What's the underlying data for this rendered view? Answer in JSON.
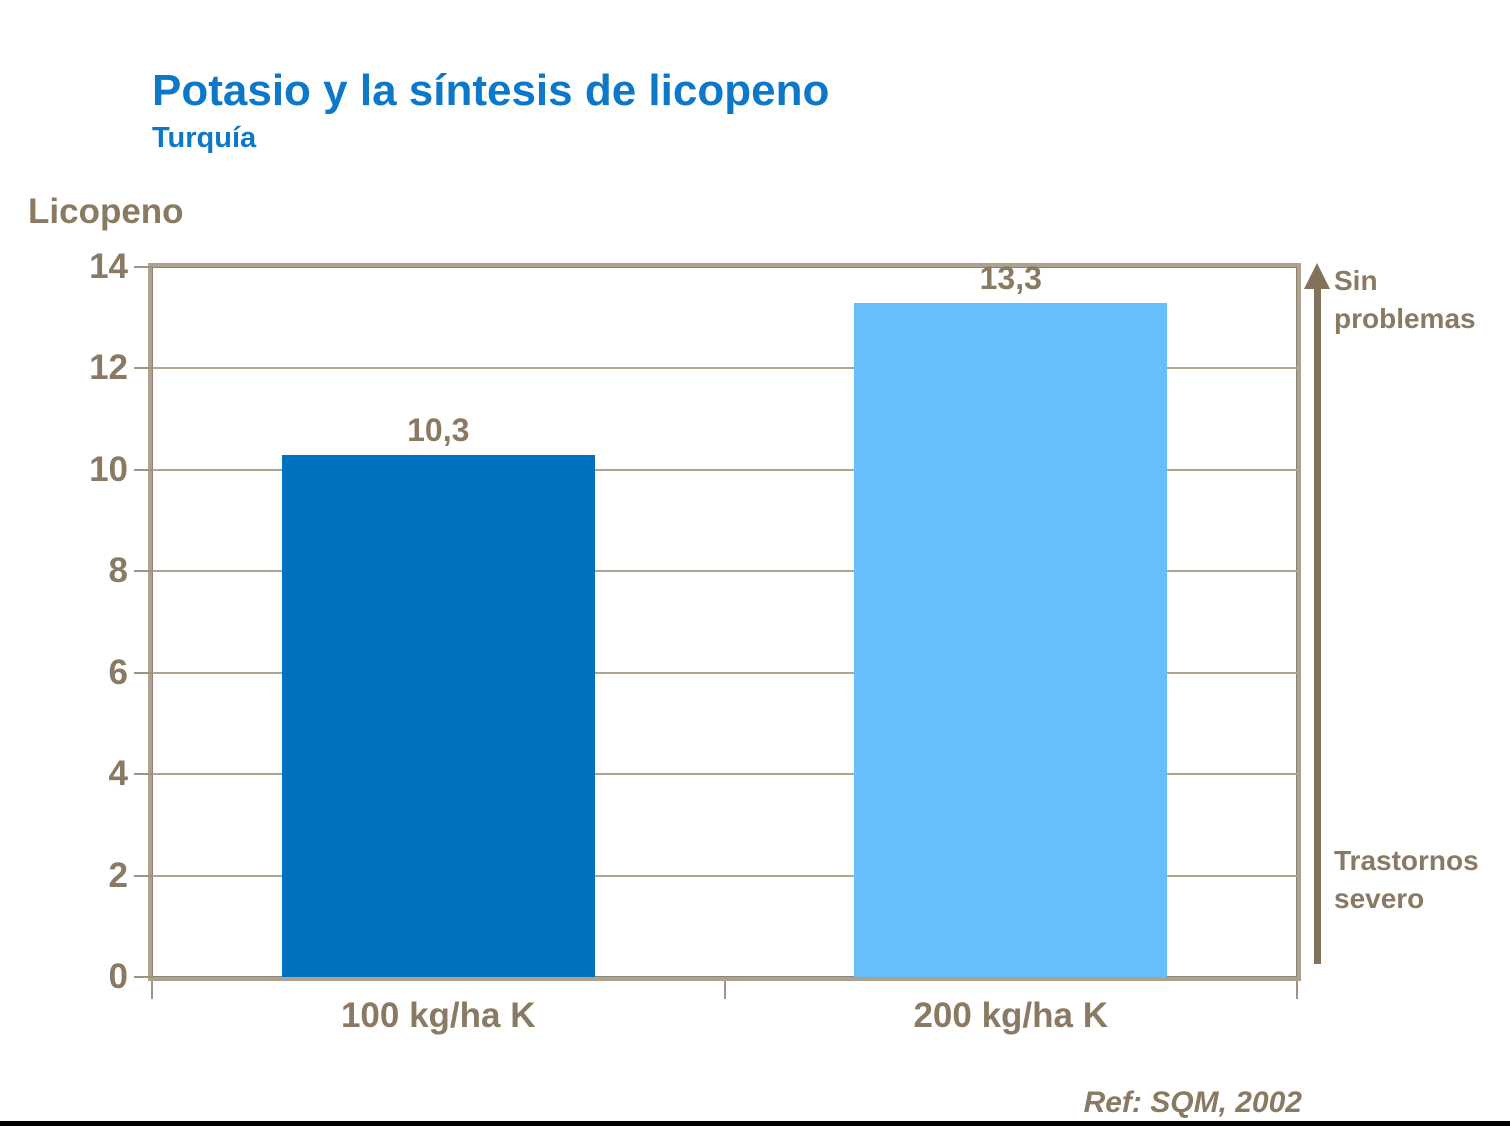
{
  "page": {
    "title": "Potasio y la síntesis de licopeno",
    "subtitle": "Turquía",
    "reference": "Ref: SQM, 2002"
  },
  "colors": {
    "title_blue": "#0d78c8",
    "text_brown": "#8a7a64",
    "axis_line": "#aea28f",
    "gridline": "#b0a594",
    "arrow_brown": "#82725c",
    "bottom_rule_black": "#000000"
  },
  "chart_data": {
    "type": "bar",
    "title": "Potasio y la síntesis de licopeno",
    "subtitle": "Turquía",
    "ylabel": "Licopeno",
    "xlabel": "",
    "categories": [
      "100 kg/ha K",
      "200 kg/ha K"
    ],
    "values": [
      10.3,
      13.3
    ],
    "value_labels": [
      "10,3",
      "13,3"
    ],
    "bar_colors": [
      "#0071bf",
      "#68befb"
    ],
    "ylim": [
      0,
      14
    ],
    "yticks": [
      0,
      2,
      4,
      6,
      8,
      10,
      12,
      14
    ],
    "grid": true,
    "legend": "none",
    "annotations": [
      {
        "text": "Sin problemas",
        "position": "right-top"
      },
      {
        "text": "Trastornos severo",
        "position": "right-bottom"
      }
    ],
    "reference": "Ref: SQM, 2002"
  }
}
